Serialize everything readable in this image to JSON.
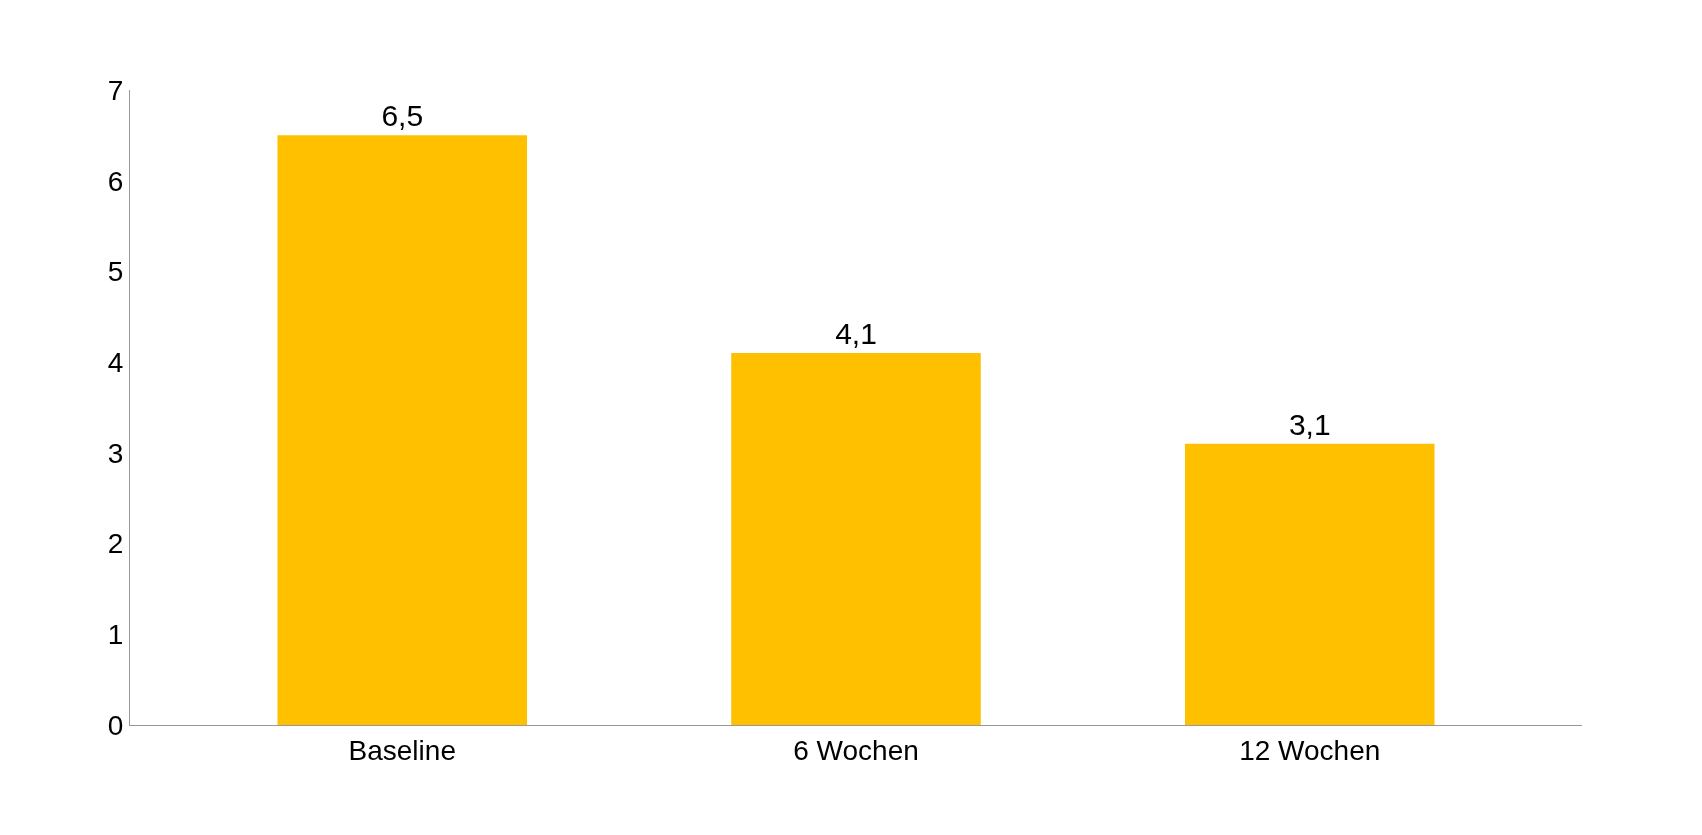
{
  "chart_data": {
    "type": "bar",
    "categories": [
      "Baseline",
      "6 Wochen",
      "12 Wochen"
    ],
    "values": [
      6.5,
      4.1,
      3.1
    ],
    "value_labels": [
      "6,5",
      "4,1",
      "3,1"
    ],
    "color": "#ffc000",
    "ylim": [
      0,
      7
    ],
    "yticks": [
      0,
      1,
      2,
      3,
      4,
      5,
      6,
      7
    ],
    "legend": false
  }
}
